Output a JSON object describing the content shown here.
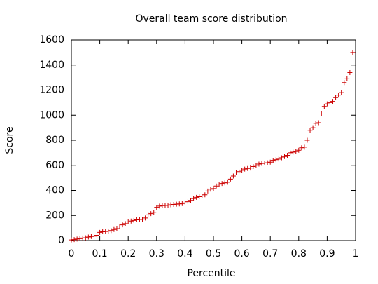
{
  "chart_data": {
    "type": "scatter",
    "title": "Overall team score distribution",
    "x_label": "Percentile",
    "y_label": "Score",
    "color": "#cc0000",
    "marker": "plus",
    "xlim": [
      0,
      1
    ],
    "ylim": [
      0,
      1600
    ],
    "xticks": [
      0,
      0.1,
      0.2,
      0.3,
      0.4,
      0.5,
      0.6,
      0.7,
      0.8,
      0.9,
      1
    ],
    "yticks": [
      0,
      200,
      400,
      600,
      800,
      1000,
      1200,
      1400,
      1600
    ],
    "x": [
      0,
      0.01,
      0.02,
      0.03,
      0.04,
      0.05,
      0.06,
      0.07,
      0.08,
      0.09,
      0.1,
      0.11,
      0.12,
      0.13,
      0.14,
      0.15,
      0.16,
      0.17,
      0.18,
      0.19,
      0.2,
      0.21,
      0.22,
      0.23,
      0.24,
      0.25,
      0.26,
      0.27,
      0.28,
      0.29,
      0.3,
      0.31,
      0.32,
      0.33,
      0.34,
      0.35,
      0.36,
      0.37,
      0.38,
      0.39,
      0.4,
      0.41,
      0.42,
      0.43,
      0.44,
      0.45,
      0.46,
      0.47,
      0.48,
      0.49,
      0.5,
      0.51,
      0.52,
      0.53,
      0.54,
      0.55,
      0.56,
      0.57,
      0.58,
      0.59,
      0.6,
      0.61,
      0.62,
      0.63,
      0.64,
      0.65,
      0.66,
      0.67,
      0.68,
      0.69,
      0.7,
      0.71,
      0.72,
      0.73,
      0.74,
      0.75,
      0.76,
      0.77,
      0.78,
      0.79,
      0.8,
      0.81,
      0.82,
      0.83,
      0.84,
      0.85,
      0.86,
      0.87,
      0.88,
      0.89,
      0.9,
      0.91,
      0.92,
      0.93,
      0.94,
      0.95,
      0.96,
      0.97,
      0.98,
      0.99
    ],
    "values": [
      5,
      8,
      12,
      15,
      20,
      22,
      28,
      32,
      35,
      42,
      65,
      70,
      72,
      75,
      80,
      88,
      95,
      115,
      125,
      135,
      148,
      155,
      160,
      165,
      168,
      170,
      180,
      205,
      215,
      225,
      265,
      275,
      278,
      280,
      282,
      285,
      288,
      290,
      292,
      295,
      300,
      310,
      320,
      335,
      345,
      350,
      355,
      365,
      395,
      410,
      415,
      435,
      450,
      455,
      460,
      465,
      490,
      515,
      540,
      550,
      560,
      570,
      575,
      578,
      590,
      600,
      610,
      615,
      618,
      620,
      625,
      640,
      645,
      650,
      660,
      670,
      680,
      700,
      705,
      710,
      720,
      740,
      745,
      800,
      880,
      900,
      935,
      940,
      1010,
      1070,
      1090,
      1100,
      1110,
      1140,
      1160,
      1180,
      1260,
      1290,
      1340,
      1500
    ]
  }
}
